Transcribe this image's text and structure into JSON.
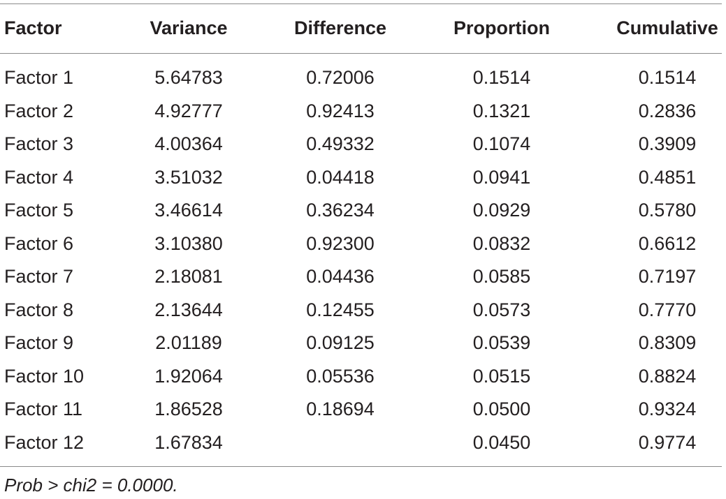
{
  "table": {
    "headers": [
      "Factor",
      "Variance",
      "Difference",
      "Proportion",
      "Cumulative"
    ],
    "rows": [
      [
        "Factor 1",
        "5.64783",
        "0.72006",
        "0.1514",
        "0.1514"
      ],
      [
        "Factor 2",
        "4.92777",
        "0.92413",
        "0.1321",
        "0.2836"
      ],
      [
        "Factor 3",
        "4.00364",
        "0.49332",
        "0.1074",
        "0.3909"
      ],
      [
        "Factor 4",
        "3.51032",
        "0.04418",
        "0.0941",
        "0.4851"
      ],
      [
        "Factor 5",
        "3.46614",
        "0.36234",
        "0.0929",
        "0.5780"
      ],
      [
        "Factor 6",
        "3.10380",
        "0.92300",
        "0.0832",
        "0.6612"
      ],
      [
        "Factor 7",
        "2.18081",
        "0.04436",
        "0.0585",
        "0.7197"
      ],
      [
        "Factor 8",
        "2.13644",
        "0.12455",
        "0.0573",
        "0.7770"
      ],
      [
        "Factor 9",
        "2.01189",
        "0.09125",
        "0.0539",
        "0.8309"
      ],
      [
        "Factor 10",
        "1.92064",
        "0.05536",
        "0.0515",
        "0.8824"
      ],
      [
        "Factor 11",
        "1.86528",
        "0.18694",
        "0.0500",
        "0.9324"
      ],
      [
        "Factor 12",
        "1.67834",
        "",
        "0.0450",
        "0.9774"
      ]
    ],
    "footnote": "Prob > chi2 = 0.0000."
  },
  "colors": {
    "text": "#231f20",
    "rule": "#8a8a8a",
    "background": "#ffffff"
  }
}
